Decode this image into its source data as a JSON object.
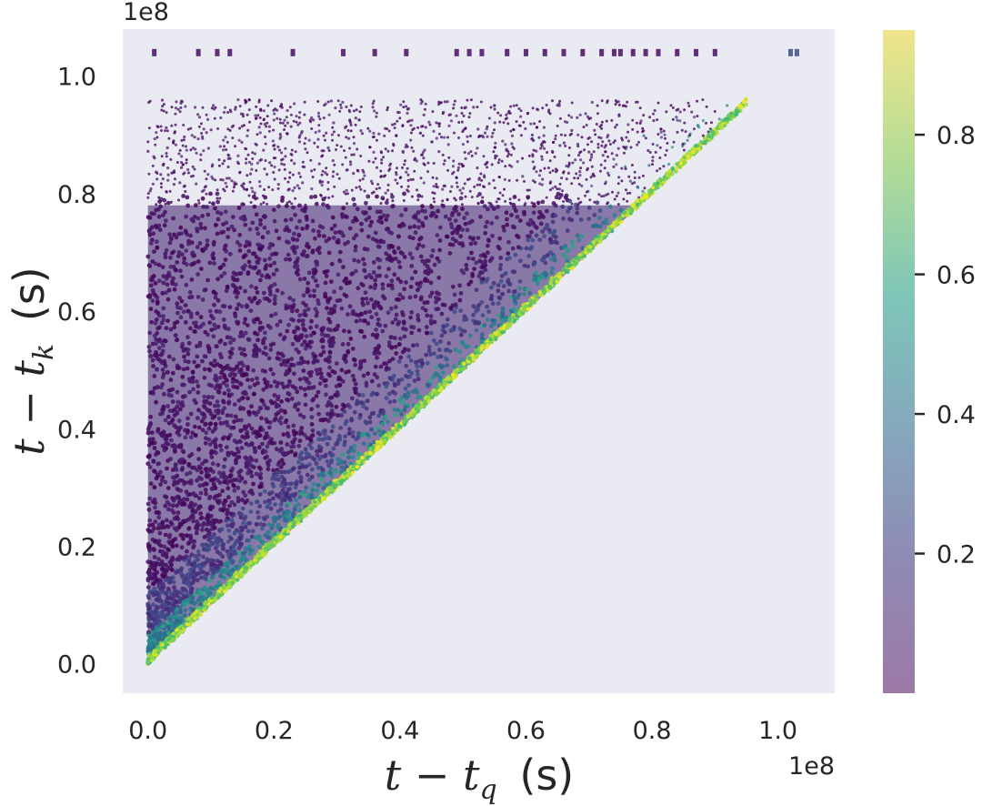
{
  "chart_data": {
    "type": "scatter",
    "title": "",
    "xlabel": {
      "var": "t",
      "op": "−",
      "sub_var": "t",
      "sub": "q",
      "unit": "(s)"
    },
    "ylabel": {
      "var": "t",
      "op": "−",
      "sub_var": "t",
      "sub": "k",
      "unit": "(s)"
    },
    "x_scale_text": "1e8",
    "y_scale_text": "1e8",
    "xlim": [
      -0.04,
      1.09
    ],
    "ylim": [
      -0.05,
      1.08
    ],
    "x_ticks": [
      0.0,
      0.2,
      0.4,
      0.6,
      0.8,
      1.0
    ],
    "x_tick_labels": [
      "0.0",
      "0.2",
      "0.4",
      "0.6",
      "0.8",
      "1.0"
    ],
    "y_ticks": [
      0.0,
      0.2,
      0.4,
      0.6,
      0.8,
      1.0
    ],
    "y_tick_labels": [
      "0.0",
      "0.2",
      "0.4",
      "0.6",
      "0.8",
      "1.0"
    ],
    "grid": false,
    "background_color": "#eaeaf2",
    "colormap": "viridis",
    "colorbar": {
      "range": [
        0.0,
        0.95
      ],
      "ticks": [
        0.2,
        0.4,
        0.6,
        0.8
      ],
      "tick_labels": [
        "0.2",
        "0.4",
        "0.6",
        "0.8"
      ]
    },
    "series_description": "dense scatter filling region 0 <= x <= y <= ~0.96; color near 0 away from diagonal, high (~0.9) along diagonal y = x",
    "top_row_points_x": [
      0.01,
      0.08,
      0.11,
      0.13,
      0.23,
      0.31,
      0.36,
      0.41,
      0.49,
      0.51,
      0.53,
      0.57,
      0.6,
      0.63,
      0.66,
      0.69,
      0.72,
      0.74,
      0.75,
      0.77,
      0.79,
      0.81,
      0.84,
      0.87,
      0.9,
      1.02,
      1.03
    ],
    "top_row_y": 1.04
  }
}
